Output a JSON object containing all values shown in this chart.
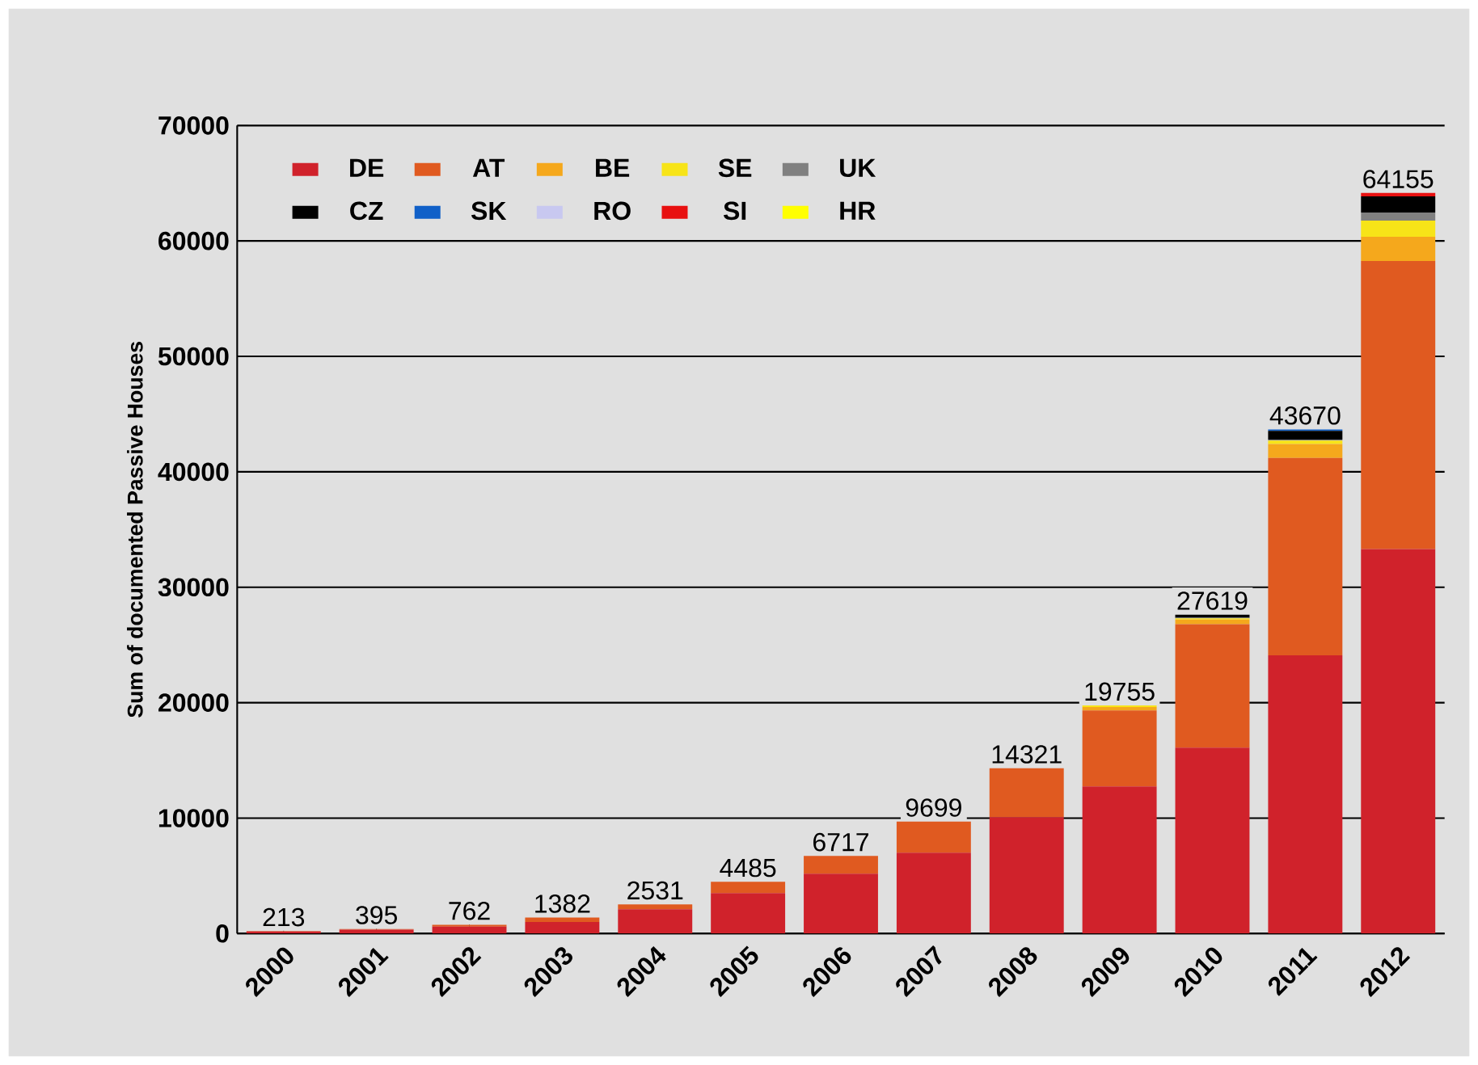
{
  "chart_data": {
    "type": "bar",
    "stacked": true,
    "ylabel": "Sum of documented Passive Houses",
    "categories": [
      "2000",
      "2001",
      "2002",
      "2003",
      "2004",
      "2005",
      "2006",
      "2007",
      "2008",
      "2009",
      "2010",
      "2011",
      "2012"
    ],
    "series": [
      {
        "name": "DE",
        "color": "#d0222b",
        "values": [
          180,
          330,
          600,
          1000,
          2100,
          3500,
          5180,
          7000,
          10080,
          12740,
          16100,
          24100,
          33300
        ]
      },
      {
        "name": "AT",
        "color": "#e05a20",
        "values": [
          33,
          65,
          162,
          382,
          431,
          985,
          1537,
          2699,
          4241,
          6590,
          10700,
          17100,
          24960
        ]
      },
      {
        "name": "BE",
        "color": "#f5a81c",
        "values": [
          0,
          0,
          0,
          0,
          0,
          0,
          0,
          0,
          0,
          300,
          400,
          1200,
          2100
        ]
      },
      {
        "name": "SE",
        "color": "#f7e418",
        "values": [
          0,
          0,
          0,
          0,
          0,
          0,
          0,
          0,
          0,
          125,
          100,
          300,
          1400
        ]
      },
      {
        "name": "UK",
        "color": "#808080",
        "values": [
          0,
          0,
          0,
          0,
          0,
          0,
          0,
          0,
          0,
          0,
          50,
          100,
          700
        ]
      },
      {
        "name": "CZ",
        "color": "#000000",
        "values": [
          0,
          0,
          0,
          0,
          0,
          0,
          0,
          0,
          0,
          0,
          269,
          750,
          1400
        ]
      },
      {
        "name": "SK",
        "color": "#1060c8",
        "values": [
          0,
          0,
          0,
          0,
          0,
          0,
          0,
          0,
          0,
          0,
          0,
          120,
          0
        ]
      },
      {
        "name": "RO",
        "color": "#c8c8f0",
        "values": [
          0,
          0,
          0,
          0,
          0,
          0,
          0,
          0,
          0,
          0,
          0,
          0,
          0
        ]
      },
      {
        "name": "SI",
        "color": "#e81010",
        "values": [
          0,
          0,
          0,
          0,
          0,
          0,
          0,
          0,
          0,
          0,
          0,
          0,
          295
        ]
      },
      {
        "name": "HR",
        "color": "#ffff00",
        "values": [
          0,
          0,
          0,
          0,
          0,
          0,
          0,
          0,
          0,
          0,
          0,
          0,
          0
        ]
      }
    ],
    "totals": [
      "213",
      "395",
      "762",
      "1382",
      "2531",
      "4485",
      "6717",
      "9699",
      "14321",
      "19755",
      "27619",
      "43670",
      "64155"
    ],
    "ylim": [
      0,
      70000
    ],
    "yticks": [
      0,
      10000,
      20000,
      30000,
      40000,
      50000,
      60000,
      70000
    ],
    "grid": "y",
    "legend": "top left"
  }
}
